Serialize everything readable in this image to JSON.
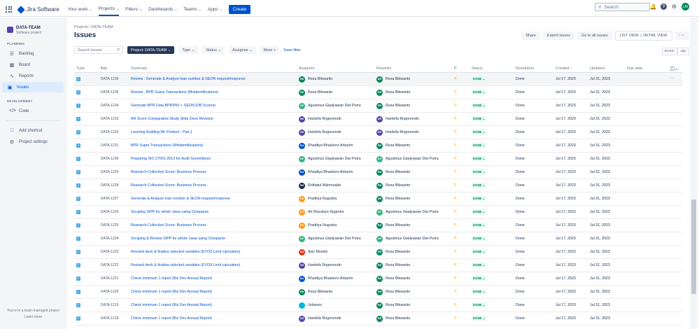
{
  "topbar": {
    "brand": "Jira Software",
    "nav": [
      {
        "label": "Your work",
        "active": false
      },
      {
        "label": "Projects",
        "active": true
      },
      {
        "label": "Filters",
        "active": false
      },
      {
        "label": "Dashboards",
        "active": false
      },
      {
        "label": "Teams",
        "active": false
      },
      {
        "label": "Apps",
        "active": false
      }
    ],
    "create": "Create",
    "search_placeholder": "Search",
    "user_initials": "LM"
  },
  "sidebar": {
    "project_name": "DATA-TEAM",
    "project_type": "Software project",
    "planning": "PLANNING",
    "planning_items": [
      "Backlog",
      "Board",
      "Reports",
      "Issues"
    ],
    "development": "DEVELOPMENT",
    "dev_items": [
      "Code"
    ],
    "extra_items": [
      "Add shortcut",
      "Project settings"
    ],
    "footer1": "You're in a team-managed project",
    "footer2": "Learn more"
  },
  "header": {
    "breadcrumb": "Projects  /  DATA-TEAM",
    "title": "Issues",
    "share": "Share",
    "export": "Export issues",
    "goto": "Go to all issues",
    "list_view": "LIST VIEW",
    "detail_view": "DETAIL VIEW"
  },
  "filters": {
    "search_placeholder": "Search issues",
    "project": "Project: DATA-TEAM",
    "type": "Type",
    "status": "Status",
    "assignee": "Assignee",
    "more": "More +",
    "save": "Save filter",
    "basic": "BASIC",
    "jql": "JQL"
  },
  "columns": [
    "Type",
    "Key",
    "Summary",
    "Assignee",
    "Reporter",
    "P",
    "Status",
    "Resolution",
    "Created",
    "Updated",
    "Due date"
  ],
  "rows": [
    {
      "key": "DATA-1236",
      "summary": "Review : Generate & Analyze loan number & SEON request/response",
      "assignee": "Reza Bikwanto",
      "a_ini": "RB",
      "a_col": "#00875A",
      "reporter": "Reza Bikwanto",
      "r_ini": "RB",
      "r_col": "#00875A",
      "status": "DONE",
      "resolution": "Done",
      "created": "Jul 17, 2023",
      "updated": "Jul 31, 2023"
    },
    {
      "key": "DATA-1235",
      "summary": "Review : BPR Supra Transactions (Misidentifications)",
      "assignee": "Reza Bikwanto",
      "a_ini": "RB",
      "a_col": "#00875A",
      "reporter": "Reza Bikwanto",
      "r_ini": "RB",
      "r_col": "#00875A",
      "status": "DONE",
      "resolution": "Done",
      "created": "Jul 17, 2023",
      "updated": "Jul 31, 2023"
    },
    {
      "key": "DATA-1234",
      "summary": "Generate BPR Data BPR/INV + SEON (DB Scores)",
      "assignee": "Agustinus Giadyawan Dwi Putra",
      "a_ini": "AP",
      "a_col": "#36B37E",
      "reporter": "Reza Bikwanto",
      "r_ini": "RB",
      "r_col": "#00875A",
      "status": "DONE",
      "resolution": "Done",
      "created": "Jul 17, 2023",
      "updated": "Jul 31, 2023"
    },
    {
      "key": "DATA-1233",
      "summary": "AR Score Comparative Study Slide Deck Revision",
      "assignee": "Hardefa Rogonondo",
      "a_ini": "HR",
      "a_col": "#5243AA",
      "reporter": "Hardefa Rogonondo",
      "r_ini": "HR",
      "r_col": "#5243AA",
      "status": "DONE",
      "resolution": "Done",
      "created": "Jul 17, 2023",
      "updated": "Jul 31, 2023"
    },
    {
      "key": "DATA-1232",
      "summary": "Learning Building ML Product - Part 1",
      "assignee": "Hardefa Rogonondo",
      "a_ini": "HR",
      "a_col": "#5243AA",
      "reporter": "Hardefa Rogonondo",
      "r_ini": "HR",
      "r_col": "#5243AA",
      "status": "DONE",
      "resolution": "Done",
      "created": "Jul 17, 2023",
      "updated": "Jul 31, 2023"
    },
    {
      "key": "DATA-1231",
      "summary": "BPR Supra Transactions (Misidentifications)",
      "assignee": "Rhaditya Bhaskoro Arbarim",
      "a_ini": "RA",
      "a_col": "#0052CC",
      "reporter": "Reza Bikwanto",
      "r_ini": "RB",
      "r_col": "#00875A",
      "status": "DONE",
      "resolution": "Done",
      "created": "Jul 17, 2023",
      "updated": "Jul 31, 2023"
    },
    {
      "key": "DATA-1230",
      "summary": "Preparing ISO 27001:2013 for Audit Surveillance",
      "assignee": "Agustinus Giadyawan Dwi Putra",
      "a_ini": "AP",
      "a_col": "#36B37E",
      "reporter": "Agustinus Giadyawan Dwi Putra",
      "r_ini": "AP",
      "r_col": "#36B37E",
      "status": "DONE",
      "resolution": "Done",
      "created": "Jul 17, 2023",
      "updated": "Jul 31, 2023"
    },
    {
      "key": "DATA-1229",
      "summary": "Research Collection Score: Business Process",
      "assignee": "Rhaditya Bhaskoro Arbarim",
      "a_ini": "RA",
      "a_col": "#0052CC",
      "reporter": "Reza Bikwanto",
      "r_ini": "RB",
      "r_col": "#00875A",
      "status": "DONE",
      "resolution": "Done",
      "created": "Jul 17, 2023",
      "updated": "Jul 31, 2023"
    },
    {
      "key": "DATA-1228",
      "summary": "Research Collection Score: Business Process",
      "assignee": "Rolhatul Mahmudah",
      "a_ini": "RM",
      "a_col": "#172B4D",
      "reporter": "Reza Bikwanto",
      "r_ini": "RB",
      "r_col": "#00875A",
      "status": "DONE",
      "resolution": "Done",
      "created": "Jul 17, 2023",
      "updated": "Jul 31, 2023"
    },
    {
      "key": "DATA-1227",
      "summary": "Generate & Analyze loan number & SEON request/response",
      "assignee": "Praditya Nugraha",
      "a_ini": "PN",
      "a_col": "#FF991F",
      "reporter": "Reza Bikwanto",
      "r_ini": "RB",
      "r_col": "#00875A",
      "status": "DONE",
      "resolution": "Done",
      "created": "Jul 17, 2023",
      "updated": "Jul 31, 2023"
    },
    {
      "key": "DATA-1226",
      "summary": "Scraping SIPP for whole Jawa using Octoparse",
      "assignee": "Ari Riscahyo Nugroho",
      "a_ini": "AN",
      "a_col": "#FF991F",
      "reporter": "Agustinus Giadyawan Dwi Putra",
      "r_ini": "AP",
      "r_col": "#36B37E",
      "status": "DONE",
      "resolution": "Done",
      "created": "Jul 17, 2023",
      "updated": "Jul 31, 2023"
    },
    {
      "key": "DATA-1225",
      "summary": "Research Collection Score: Business Process",
      "assignee": "Praditya Nugraha",
      "a_ini": "PN",
      "a_col": "#FF991F",
      "reporter": "Reza Bikwanto",
      "r_ini": "RB",
      "r_col": "#00875A",
      "status": "DONE",
      "resolution": "Done",
      "created": "Jul 17, 2023",
      "updated": "Jul 31, 2023"
    },
    {
      "key": "DATA-1224",
      "summary": "Scraping & Review SIPP for whole Jawa using Octoparse",
      "assignee": "Agustinus Giadyawan Dwi Putra",
      "a_ini": "AP",
      "a_col": "#36B37E",
      "reporter": "Agustinus Giadyawan Dwi Putra",
      "r_ini": "AP",
      "r_col": "#36B37E",
      "status": "DONE",
      "resolution": "Done",
      "created": "Jul 17, 2023",
      "updated": "Jul 31, 2023"
    },
    {
      "key": "DATA-1223",
      "summary": "Revised deck & finalize selected variables (EYOS Limit calcuation)",
      "assignee": "Aziz Muslim",
      "a_ini": "AM",
      "a_col": "#DE350B",
      "reporter": "Reza Bikwanto",
      "r_ini": "RB",
      "r_col": "#00875A",
      "status": "DONE",
      "resolution": "Done",
      "created": "Jul 17, 2023",
      "updated": "Jul 31, 2023"
    },
    {
      "key": "DATA-1222",
      "summary": "Revised deck & finalize selected variables (EYOS Limit calcuation)",
      "assignee": "Hardefa Rogonondo",
      "a_ini": "HR",
      "a_col": "#5243AA",
      "reporter": "Reza Bikwanto",
      "r_ini": "RB",
      "r_col": "#00875A",
      "status": "DONE",
      "resolution": "Done",
      "created": "Jul 17, 2023",
      "updated": "Jul 31, 2023"
    },
    {
      "key": "DATA-1221",
      "summary": "Check minimum 1 report (Biz Dev Annual Report)",
      "assignee": "Rhaditya Bhaskoro Arbarim",
      "a_ini": "RA",
      "a_col": "#0052CC",
      "reporter": "Reza Bikwanto",
      "r_ini": "RB",
      "r_col": "#00875A",
      "status": "DONE",
      "resolution": "Done",
      "created": "Jul 17, 2023",
      "updated": "Jul 31, 2023"
    },
    {
      "key": "DATA-1220",
      "summary": "Check minimum 1 report (Biz Dev Annual Report)",
      "assignee": "Reza Bikwanto",
      "a_ini": "RB",
      "a_col": "#00875A",
      "reporter": "Reza Bikwanto",
      "r_ini": "RB",
      "r_col": "#00875A",
      "status": "DONE",
      "resolution": "Done",
      "created": "Jul 17, 2023",
      "updated": "Jul 31, 2023"
    },
    {
      "key": "DATA-1219",
      "summary": "Check minimum 1 report (Biz Dev Annual Report)",
      "assignee": "Johanes",
      "a_ini": "",
      "a_col": "#00B8D9",
      "reporter": "Reza Bikwanto",
      "r_ini": "RB",
      "r_col": "#00875A",
      "status": "DONE",
      "resolution": "Done",
      "created": "Jul 17, 2023",
      "updated": "Jul 31, 2023"
    },
    {
      "key": "DATA-1218",
      "summary": "Check minimum 1 report (Biz Dev Annual Report)",
      "assignee": "Hardefa Rogonondo",
      "a_ini": "HR",
      "a_col": "#5243AA",
      "reporter": "Reza Bikwanto",
      "r_ini": "RB",
      "r_col": "#00875A",
      "status": "DONE",
      "resolution": "Done",
      "created": "Jul 17, 2023",
      "updated": "Jul 31, 2023"
    }
  ]
}
